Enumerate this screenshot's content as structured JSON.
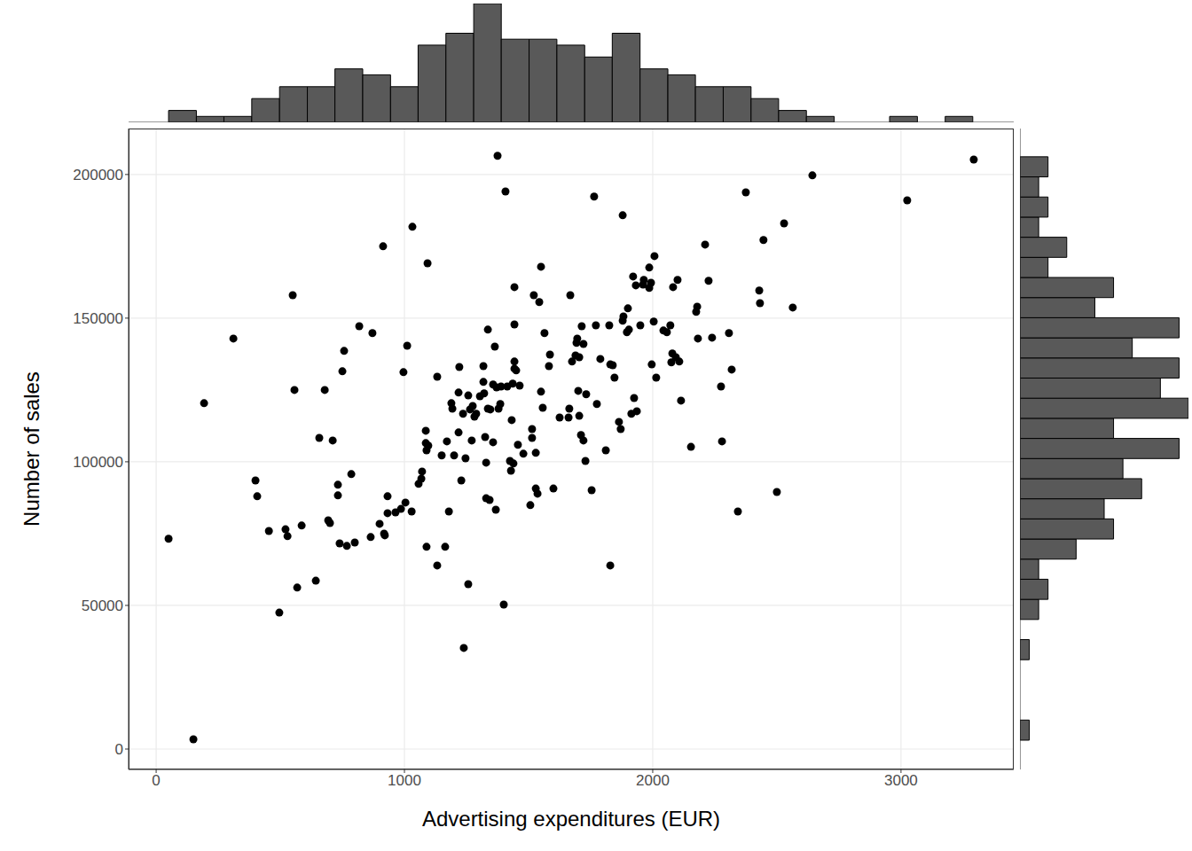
{
  "chart_data": [
    {
      "type": "scatter",
      "x_label": "Advertising expenditures (EUR)",
      "y_label": "Number of sales",
      "color": "#000000",
      "marker": "circle",
      "grid": true,
      "xlim": [
        -111,
        3454
      ],
      "xticks": [
        0,
        1000,
        2000,
        3000
      ],
      "ylim": [
        -7100,
        216000
      ],
      "yticks": [
        0,
        50000,
        100000,
        150000,
        200000
      ],
      "x": [
        50,
        150,
        193,
        311,
        400,
        407,
        454,
        496,
        521,
        529,
        550,
        557,
        568,
        586,
        643,
        657,
        679,
        693,
        700,
        711,
        732,
        732,
        739,
        750,
        757,
        768,
        786,
        800,
        818,
        864,
        871,
        900,
        914,
        918,
        921,
        932,
        932,
        964,
        986,
        996,
        1004,
        1011,
        1029,
        1032,
        1057,
        1068,
        1071,
        1086,
        1086,
        1089,
        1089,
        1093,
        1096,
        1132,
        1132,
        1150,
        1164,
        1171,
        1179,
        1189,
        1193,
        1200,
        1218,
        1218,
        1221,
        1229,
        1236,
        1239,
        1246,
        1257,
        1257,
        1264,
        1271,
        1275,
        1282,
        1289,
        1304,
        1318,
        1318,
        1325,
        1321,
        1329,
        1329,
        1336,
        1336,
        1343,
        1346,
        1357,
        1357,
        1368,
        1371,
        1375,
        1364,
        1379,
        1386,
        1389,
        1400,
        1407,
        1414,
        1425,
        1429,
        1432,
        1436,
        1439,
        1443,
        1443,
        1443,
        1443,
        1450,
        1457,
        1464,
        1479,
        1507,
        1514,
        1514,
        1521,
        1529,
        1529,
        1536,
        1543,
        1550,
        1550,
        1557,
        1564,
        1582,
        1586,
        1600,
        1625,
        1661,
        1664,
        1668,
        1675,
        1689,
        1693,
        1696,
        1700,
        1704,
        1704,
        1714,
        1711,
        1721,
        1729,
        1721,
        1732,
        1754,
        1764,
        1771,
        1775,
        1789,
        1811,
        1825,
        1829,
        1829,
        1839,
        1846,
        1864,
        1871,
        1879,
        1879,
        1882,
        1900,
        1896,
        1904,
        1914,
        1921,
        1925,
        1932,
        1936,
        1950,
        1961,
        1964,
        1986,
        1986,
        1993,
        1996,
        2004,
        2007,
        2014,
        2043,
        2057,
        2071,
        2075,
        2079,
        2082,
        2093,
        2100,
        2107,
        2114,
        2154,
        2175,
        2179,
        2182,
        2211,
        2225,
        2239,
        2275,
        2279,
        2307,
        2318,
        2343,
        2375,
        2429,
        2432,
        2446,
        2500,
        2529,
        2564,
        2643,
        3025,
        3293
      ],
      "values": [
        73200,
        3400,
        120400,
        142900,
        93500,
        88000,
        75900,
        47500,
        76500,
        74100,
        158000,
        125000,
        56200,
        77800,
        58600,
        108300,
        125000,
        79600,
        78700,
        107400,
        92000,
        88300,
        71600,
        131500,
        138600,
        70700,
        95700,
        71900,
        147200,
        73800,
        144800,
        78400,
        175000,
        75000,
        74400,
        88000,
        82100,
        82400,
        83600,
        131200,
        85800,
        140400,
        82700,
        181800,
        92300,
        94100,
        96600,
        110800,
        106500,
        104000,
        70400,
        169100,
        105600,
        129600,
        63900,
        102200,
        70400,
        107100,
        82700,
        120400,
        118500,
        102200,
        124100,
        110200,
        133000,
        93500,
        116700,
        35200,
        101200,
        123100,
        57400,
        118200,
        107400,
        119400,
        115700,
        116700,
        122800,
        133300,
        127800,
        108600,
        123800,
        87300,
        99700,
        118500,
        146000,
        86700,
        118200,
        106800,
        126900,
        83300,
        125900,
        206500,
        140100,
        118500,
        120100,
        126200,
        50300,
        194100,
        126200,
        100300,
        96900,
        114500,
        127200,
        99400,
        134900,
        147800,
        160800,
        132400,
        131800,
        105900,
        126500,
        102800,
        84900,
        111400,
        108300,
        158000,
        103100,
        90700,
        88900,
        155600,
        167900,
        124400,
        118800,
        144800,
        133300,
        137300,
        90700,
        115400,
        115400,
        118500,
        158000,
        134900,
        137000,
        141400,
        142900,
        124700,
        136400,
        116000,
        147200,
        109300,
        107400,
        100300,
        141000,
        123500,
        90100,
        192300,
        147500,
        120100,
        135800,
        104000,
        147500,
        63900,
        133900,
        133600,
        129300,
        113900,
        111400,
        185800,
        149100,
        150600,
        153400,
        145100,
        146000,
        116700,
        164500,
        122200,
        161400,
        117600,
        147500,
        161700,
        163300,
        167600,
        160500,
        162300,
        133900,
        148800,
        171600,
        129300,
        145700,
        145100,
        147500,
        134600,
        137700,
        160800,
        136400,
        163300,
        134900,
        121300,
        105200,
        152200,
        154000,
        142900,
        175600,
        163000,
        143200,
        126200,
        107100,
        144800,
        132100,
        82700,
        193800,
        159600,
        155200,
        177200,
        89500,
        183000,
        153700,
        199700,
        191000,
        205200
      ]
    },
    {
      "type": "histogram",
      "color": "#595959",
      "tick_labels": false,
      "bins": [
        50,
        162,
        273,
        385,
        497,
        609,
        720,
        832,
        944,
        1055,
        1167,
        1279,
        1390,
        1502,
        1614,
        1726,
        1837,
        1949,
        2061,
        2172,
        2284,
        2396,
        2507,
        2619,
        2731,
        2843,
        2954,
        3066,
        3178,
        3289
      ],
      "values": [
        2,
        1,
        1,
        4,
        6,
        6,
        9,
        8,
        6,
        13,
        15,
        20,
        14,
        14,
        13,
        11,
        15,
        9,
        8,
        6,
        6,
        4,
        2,
        1,
        0,
        0,
        1,
        0,
        1
      ]
    },
    {
      "type": "histogram",
      "orientation": "horizontal",
      "color": "#595959",
      "tick_labels": false,
      "bins": [
        3086,
        10089,
        17092,
        24095,
        31098,
        38101,
        45104,
        52107,
        59110,
        66113,
        73116,
        80119,
        87122,
        94125,
        101128,
        108131,
        115134,
        122137,
        129140,
        136143,
        143146,
        150149,
        157152,
        164155,
        171158,
        178161,
        185164,
        192167,
        199170,
        206173
      ],
      "values": [
        1,
        0,
        0,
        0,
        1,
        0,
        2,
        3,
        2,
        6,
        10,
        9,
        13,
        11,
        17,
        10,
        18,
        15,
        17,
        12,
        17,
        8,
        10,
        3,
        5,
        2,
        3,
        2,
        3
      ]
    }
  ]
}
